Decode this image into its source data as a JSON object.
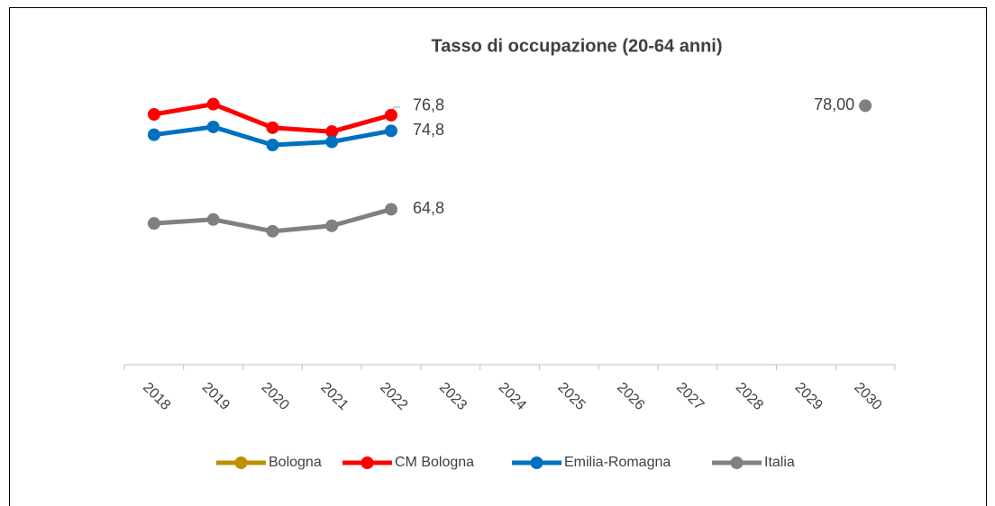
{
  "chart_data": {
    "type": "line",
    "title": "Tasso di occupazione (20-64 anni)",
    "categories": [
      "2018",
      "2019",
      "2020",
      "2021",
      "2022",
      "2023",
      "2024",
      "2025",
      "2026",
      "2027",
      "2028",
      "2029",
      "2030"
    ],
    "ylim": [
      45,
      80
    ],
    "series": [
      {
        "name": "Bologna",
        "color": "#bf9000",
        "values": [
          null,
          null,
          null,
          null,
          null,
          null,
          null,
          null,
          null,
          null,
          null,
          null,
          null
        ]
      },
      {
        "name": "CM Bologna",
        "color": "#ff0000",
        "values": [
          76.9,
          78.2,
          75.2,
          74.7,
          76.8,
          null,
          null,
          null,
          null,
          null,
          null,
          null,
          null
        ],
        "value_labels": [
          null,
          null,
          null,
          null,
          "76,8",
          null,
          null,
          null,
          null,
          null,
          null,
          null,
          null
        ]
      },
      {
        "name": "Emilia-Romagna",
        "color": "#0070c0",
        "values": [
          74.3,
          75.3,
          73.0,
          73.4,
          74.8,
          null,
          null,
          null,
          null,
          null,
          null,
          null,
          null
        ],
        "value_labels": [
          null,
          null,
          null,
          null,
          "74,8",
          null,
          null,
          null,
          null,
          null,
          null,
          null,
          null
        ]
      },
      {
        "name": "Italia",
        "color": "#808080",
        "values": [
          63.0,
          63.5,
          62.0,
          62.7,
          64.8,
          null,
          null,
          null,
          null,
          null,
          null,
          null,
          78.0
        ],
        "value_labels": [
          null,
          null,
          null,
          null,
          "64,8",
          null,
          null,
          null,
          null,
          null,
          null,
          null,
          "78,00"
        ]
      }
    ]
  }
}
